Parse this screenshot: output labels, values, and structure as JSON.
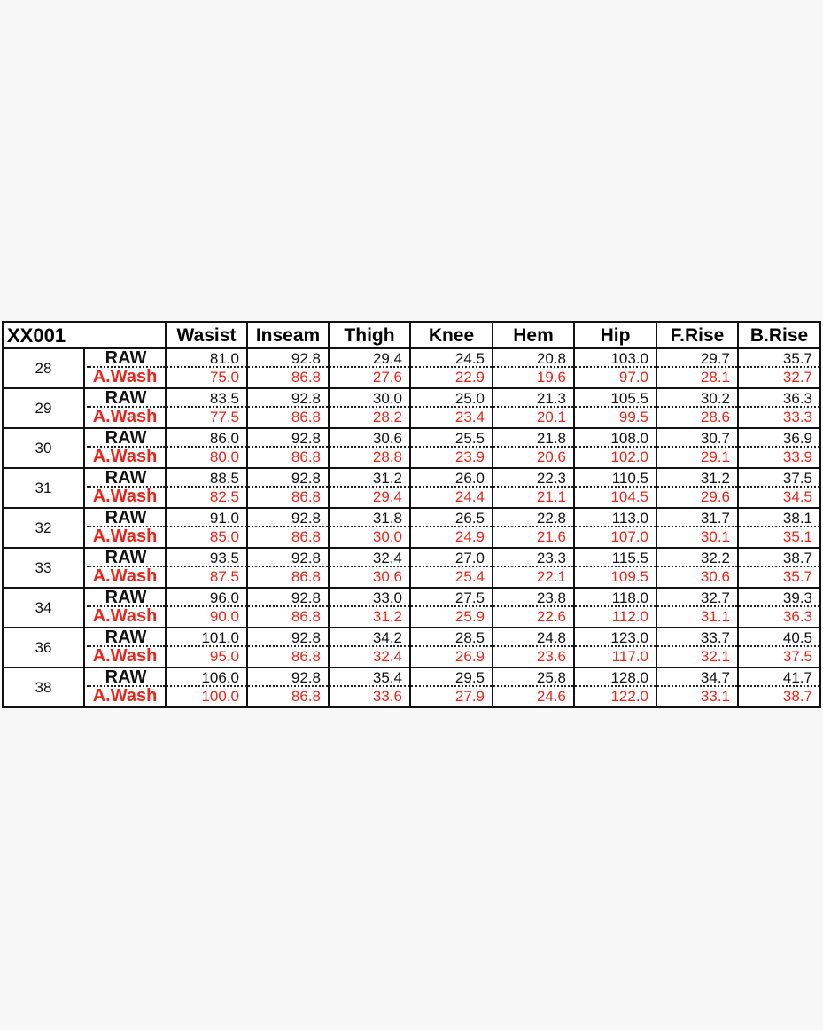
{
  "model": "XX001",
  "columns": [
    "Wasist",
    "Inseam",
    "Thigh",
    "Knee",
    "Hem",
    "Hip",
    "F.Rise",
    "B.Rise"
  ],
  "labels": {
    "raw": "RAW",
    "wash": "A.Wash"
  },
  "colors": {
    "raw": "#111111",
    "wash": "#e8261c"
  },
  "rows": [
    {
      "size": "28",
      "raw": [
        "81.0",
        "92.8",
        "29.4",
        "24.5",
        "20.8",
        "103.0",
        "29.7",
        "35.7"
      ],
      "wash": [
        "75.0",
        "86.8",
        "27.6",
        "22.9",
        "19.6",
        "97.0",
        "28.1",
        "32.7"
      ]
    },
    {
      "size": "29",
      "raw": [
        "83.5",
        "92.8",
        "30.0",
        "25.0",
        "21.3",
        "105.5",
        "30.2",
        "36.3"
      ],
      "wash": [
        "77.5",
        "86.8",
        "28.2",
        "23.4",
        "20.1",
        "99.5",
        "28.6",
        "33.3"
      ]
    },
    {
      "size": "30",
      "raw": [
        "86.0",
        "92.8",
        "30.6",
        "25.5",
        "21.8",
        "108.0",
        "30.7",
        "36.9"
      ],
      "wash": [
        "80.0",
        "86.8",
        "28.8",
        "23.9",
        "20.6",
        "102.0",
        "29.1",
        "33.9"
      ]
    },
    {
      "size": "31",
      "raw": [
        "88.5",
        "92.8",
        "31.2",
        "26.0",
        "22.3",
        "110.5",
        "31.2",
        "37.5"
      ],
      "wash": [
        "82.5",
        "86.8",
        "29.4",
        "24.4",
        "21.1",
        "104.5",
        "29.6",
        "34.5"
      ]
    },
    {
      "size": "32",
      "raw": [
        "91.0",
        "92.8",
        "31.8",
        "26.5",
        "22.8",
        "113.0",
        "31.7",
        "38.1"
      ],
      "wash": [
        "85.0",
        "86.8",
        "30.0",
        "24.9",
        "21.6",
        "107.0",
        "30.1",
        "35.1"
      ]
    },
    {
      "size": "33",
      "raw": [
        "93.5",
        "92.8",
        "32.4",
        "27.0",
        "23.3",
        "115.5",
        "32.2",
        "38.7"
      ],
      "wash": [
        "87.5",
        "86.8",
        "30.6",
        "25.4",
        "22.1",
        "109.5",
        "30.6",
        "35.7"
      ]
    },
    {
      "size": "34",
      "raw": [
        "96.0",
        "92.8",
        "33.0",
        "27.5",
        "23.8",
        "118.0",
        "32.7",
        "39.3"
      ],
      "wash": [
        "90.0",
        "86.8",
        "31.2",
        "25.9",
        "22.6",
        "112.0",
        "31.1",
        "36.3"
      ]
    },
    {
      "size": "36",
      "raw": [
        "101.0",
        "92.8",
        "34.2",
        "28.5",
        "24.8",
        "123.0",
        "33.7",
        "40.5"
      ],
      "wash": [
        "95.0",
        "86.8",
        "32.4",
        "26.9",
        "23.6",
        "117.0",
        "32.1",
        "37.5"
      ]
    },
    {
      "size": "38",
      "raw": [
        "106.0",
        "92.8",
        "35.4",
        "29.5",
        "25.8",
        "128.0",
        "34.7",
        "41.7"
      ],
      "wash": [
        "100.0",
        "86.8",
        "33.6",
        "27.9",
        "24.6",
        "122.0",
        "33.1",
        "38.7"
      ]
    }
  ]
}
